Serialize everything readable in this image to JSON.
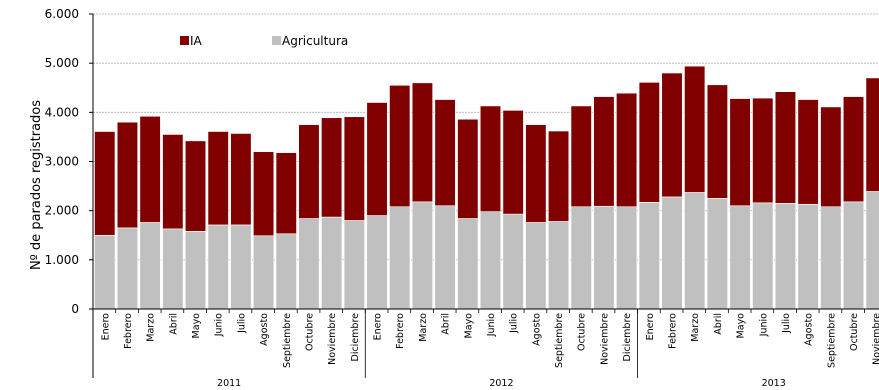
{
  "chart_data": {
    "type": "bar",
    "stacked": true,
    "ylabel": "Nº de parados registrados",
    "ylim": [
      0,
      6000
    ],
    "yticks": [
      0,
      1000,
      2000,
      3000,
      4000,
      5000,
      6000
    ],
    "ytick_labels": [
      "0",
      "1.000",
      "2.000",
      "3.000",
      "4.000",
      "5.000",
      "6.000"
    ],
    "grid": true,
    "legend_position": "top-left",
    "categories": [
      "Enero",
      "Febrero",
      "Marzo",
      "Abril",
      "Mayo",
      "Junio",
      "Julio",
      "Agosto",
      "Septiembre",
      "Octubre",
      "Noviembre",
      "Diciembre",
      "Enero",
      "Febrero",
      "Marzo",
      "Abril",
      "Mayo",
      "Junio",
      "Julio",
      "Agosto",
      "Septiembre",
      "Octubre",
      "Noviembre",
      "Diciembre",
      "Enero",
      "Febrero",
      "Marzo",
      "Abril",
      "Mayo",
      "Junio",
      "Julio",
      "Agosto",
      "Septiembre",
      "Octubre",
      "Noviembre"
    ],
    "groups": [
      {
        "label": "2011",
        "count": 12
      },
      {
        "label": "2012",
        "count": 12
      },
      {
        "label": "2013",
        "count": 11
      }
    ],
    "series": [
      {
        "name": "Agricultura",
        "color": "#c0c0c0",
        "values": [
          1500,
          1650,
          1760,
          1630,
          1580,
          1710,
          1710,
          1490,
          1530,
          1840,
          1870,
          1800,
          1900,
          2080,
          2180,
          2100,
          1840,
          1980,
          1930,
          1760,
          1780,
          2080,
          2090,
          2080,
          2170,
          2280,
          2370,
          2250,
          2100,
          2160,
          2150,
          2130,
          2080,
          2180,
          2390
        ]
      },
      {
        "name": "IA",
        "color": "#800000",
        "values": [
          2110,
          2150,
          2160,
          1920,
          1840,
          1900,
          1860,
          1710,
          1650,
          1910,
          2020,
          2110,
          2300,
          2470,
          2420,
          2160,
          2020,
          2150,
          2110,
          1990,
          1840,
          2050,
          2230,
          2310,
          2440,
          2520,
          2570,
          2310,
          2180,
          2130,
          2270,
          2130,
          2030,
          2140,
          2310
        ]
      }
    ]
  }
}
